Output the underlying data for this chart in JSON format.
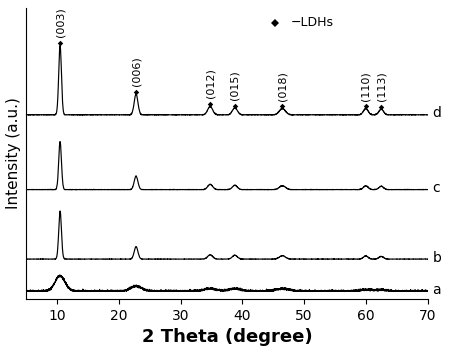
{
  "title": "",
  "xlabel": "2 Theta (degree)",
  "ylabel": "Intensity (a.u.)",
  "xlim": [
    5,
    70
  ],
  "background_color": "#ffffff",
  "curves": [
    "a",
    "b",
    "c",
    "d"
  ],
  "peak_pos": [
    10.5,
    22.8,
    34.8,
    38.8,
    46.5,
    60.0,
    62.5
  ],
  "peak_widths_sharp": [
    0.22,
    0.3,
    0.4,
    0.4,
    0.5,
    0.38,
    0.38
  ],
  "peak_widths_broad": [
    0.8,
    0.9,
    1.0,
    1.0,
    1.1,
    0.9,
    0.9
  ],
  "heights_a": [
    0.03,
    0.01,
    0.005,
    0.005,
    0.005,
    0.003,
    0.003
  ],
  "heights_b": [
    1.0,
    0.26,
    0.09,
    0.08,
    0.07,
    0.065,
    0.055
  ],
  "heights_c": [
    1.0,
    0.28,
    0.11,
    0.09,
    0.08,
    0.08,
    0.07
  ],
  "heights_d": [
    1.0,
    0.3,
    0.12,
    0.1,
    0.09,
    0.09,
    0.08
  ],
  "offsets": [
    0.02,
    0.14,
    0.4,
    0.68
  ],
  "scales": [
    0.06,
    0.18,
    0.18,
    0.26
  ],
  "peak_labels": [
    "(003)",
    "(006)",
    "(012)",
    "(015)",
    "(018)",
    "(110)",
    "(113)"
  ],
  "tick_positions": [
    10,
    20,
    30,
    40,
    50,
    60,
    70
  ],
  "line_color": "#000000",
  "font_size_xlabel": 13,
  "font_size_ylabel": 11,
  "font_size_ticks": 10,
  "font_size_annotation": 8,
  "font_size_curve_label": 10,
  "font_size_legend": 9
}
